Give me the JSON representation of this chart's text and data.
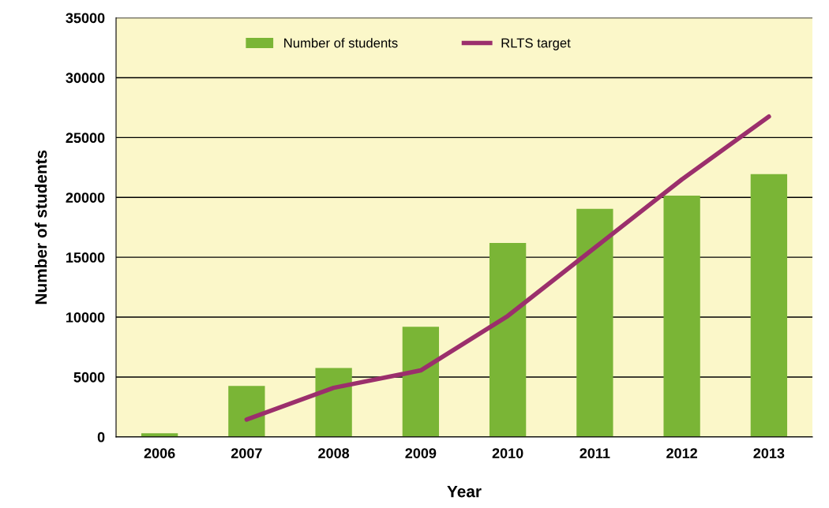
{
  "chart_data": {
    "type": "bar",
    "xlabel": "Year",
    "ylabel": "Number of students",
    "categories": [
      "2006",
      "2007",
      "2008",
      "2009",
      "2010",
      "2011",
      "2012",
      "2013"
    ],
    "series": [
      {
        "name": "Number of students",
        "color": "#7ab536",
        "values": [
          300,
          4250,
          5750,
          9200,
          16200,
          19050,
          20150,
          21950
        ]
      },
      {
        "name": "RLTS target",
        "type": "line",
        "color": "#9b2f6c",
        "values": [
          null,
          1450,
          4100,
          5550,
          10100,
          15800,
          21500,
          26750
        ]
      }
    ],
    "ylim": [
      0,
      35000
    ],
    "yticks": [
      0,
      5000,
      10000,
      15000,
      20000,
      25000,
      30000,
      35000
    ],
    "grid": "y",
    "legend": "top",
    "marker": "none",
    "line_style": "solid"
  }
}
